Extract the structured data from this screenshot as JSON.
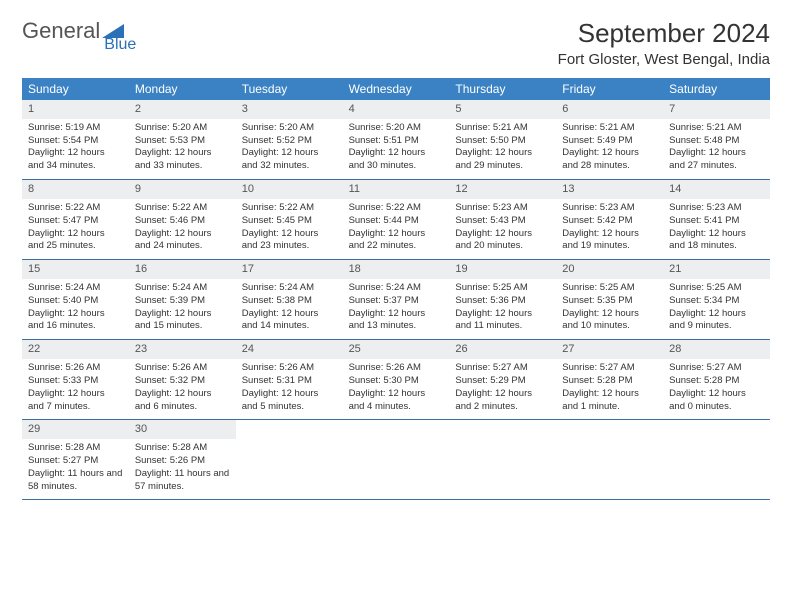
{
  "logo": {
    "text1": "General",
    "text2": "Blue",
    "accent": "#2a71b8"
  },
  "title": "September 2024",
  "location": "Fort Gloster, West Bengal, India",
  "colors": {
    "header_bg": "#3b82c4",
    "header_text": "#ffffff",
    "strip_bg": "#eceeef",
    "row_border": "#3b6ea0",
    "body_text": "#333333"
  },
  "daysOfWeek": [
    "Sunday",
    "Monday",
    "Tuesday",
    "Wednesday",
    "Thursday",
    "Friday",
    "Saturday"
  ],
  "weeks": [
    [
      {
        "n": "1",
        "sr": "5:19 AM",
        "ss": "5:54 PM",
        "dl": "12 hours and 34 minutes."
      },
      {
        "n": "2",
        "sr": "5:20 AM",
        "ss": "5:53 PM",
        "dl": "12 hours and 33 minutes."
      },
      {
        "n": "3",
        "sr": "5:20 AM",
        "ss": "5:52 PM",
        "dl": "12 hours and 32 minutes."
      },
      {
        "n": "4",
        "sr": "5:20 AM",
        "ss": "5:51 PM",
        "dl": "12 hours and 30 minutes."
      },
      {
        "n": "5",
        "sr": "5:21 AM",
        "ss": "5:50 PM",
        "dl": "12 hours and 29 minutes."
      },
      {
        "n": "6",
        "sr": "5:21 AM",
        "ss": "5:49 PM",
        "dl": "12 hours and 28 minutes."
      },
      {
        "n": "7",
        "sr": "5:21 AM",
        "ss": "5:48 PM",
        "dl": "12 hours and 27 minutes."
      }
    ],
    [
      {
        "n": "8",
        "sr": "5:22 AM",
        "ss": "5:47 PM",
        "dl": "12 hours and 25 minutes."
      },
      {
        "n": "9",
        "sr": "5:22 AM",
        "ss": "5:46 PM",
        "dl": "12 hours and 24 minutes."
      },
      {
        "n": "10",
        "sr": "5:22 AM",
        "ss": "5:45 PM",
        "dl": "12 hours and 23 minutes."
      },
      {
        "n": "11",
        "sr": "5:22 AM",
        "ss": "5:44 PM",
        "dl": "12 hours and 22 minutes."
      },
      {
        "n": "12",
        "sr": "5:23 AM",
        "ss": "5:43 PM",
        "dl": "12 hours and 20 minutes."
      },
      {
        "n": "13",
        "sr": "5:23 AM",
        "ss": "5:42 PM",
        "dl": "12 hours and 19 minutes."
      },
      {
        "n": "14",
        "sr": "5:23 AM",
        "ss": "5:41 PM",
        "dl": "12 hours and 18 minutes."
      }
    ],
    [
      {
        "n": "15",
        "sr": "5:24 AM",
        "ss": "5:40 PM",
        "dl": "12 hours and 16 minutes."
      },
      {
        "n": "16",
        "sr": "5:24 AM",
        "ss": "5:39 PM",
        "dl": "12 hours and 15 minutes."
      },
      {
        "n": "17",
        "sr": "5:24 AM",
        "ss": "5:38 PM",
        "dl": "12 hours and 14 minutes."
      },
      {
        "n": "18",
        "sr": "5:24 AM",
        "ss": "5:37 PM",
        "dl": "12 hours and 13 minutes."
      },
      {
        "n": "19",
        "sr": "5:25 AM",
        "ss": "5:36 PM",
        "dl": "12 hours and 11 minutes."
      },
      {
        "n": "20",
        "sr": "5:25 AM",
        "ss": "5:35 PM",
        "dl": "12 hours and 10 minutes."
      },
      {
        "n": "21",
        "sr": "5:25 AM",
        "ss": "5:34 PM",
        "dl": "12 hours and 9 minutes."
      }
    ],
    [
      {
        "n": "22",
        "sr": "5:26 AM",
        "ss": "5:33 PM",
        "dl": "12 hours and 7 minutes."
      },
      {
        "n": "23",
        "sr": "5:26 AM",
        "ss": "5:32 PM",
        "dl": "12 hours and 6 minutes."
      },
      {
        "n": "24",
        "sr": "5:26 AM",
        "ss": "5:31 PM",
        "dl": "12 hours and 5 minutes."
      },
      {
        "n": "25",
        "sr": "5:26 AM",
        "ss": "5:30 PM",
        "dl": "12 hours and 4 minutes."
      },
      {
        "n": "26",
        "sr": "5:27 AM",
        "ss": "5:29 PM",
        "dl": "12 hours and 2 minutes."
      },
      {
        "n": "27",
        "sr": "5:27 AM",
        "ss": "5:28 PM",
        "dl": "12 hours and 1 minute."
      },
      {
        "n": "28",
        "sr": "5:27 AM",
        "ss": "5:28 PM",
        "dl": "12 hours and 0 minutes."
      }
    ],
    [
      {
        "n": "29",
        "sr": "5:28 AM",
        "ss": "5:27 PM",
        "dl": "11 hours and 58 minutes."
      },
      {
        "n": "30",
        "sr": "5:28 AM",
        "ss": "5:26 PM",
        "dl": "11 hours and 57 minutes."
      },
      null,
      null,
      null,
      null,
      null
    ]
  ],
  "labels": {
    "sunrise": "Sunrise: ",
    "sunset": "Sunset: ",
    "daylight": "Daylight: "
  }
}
